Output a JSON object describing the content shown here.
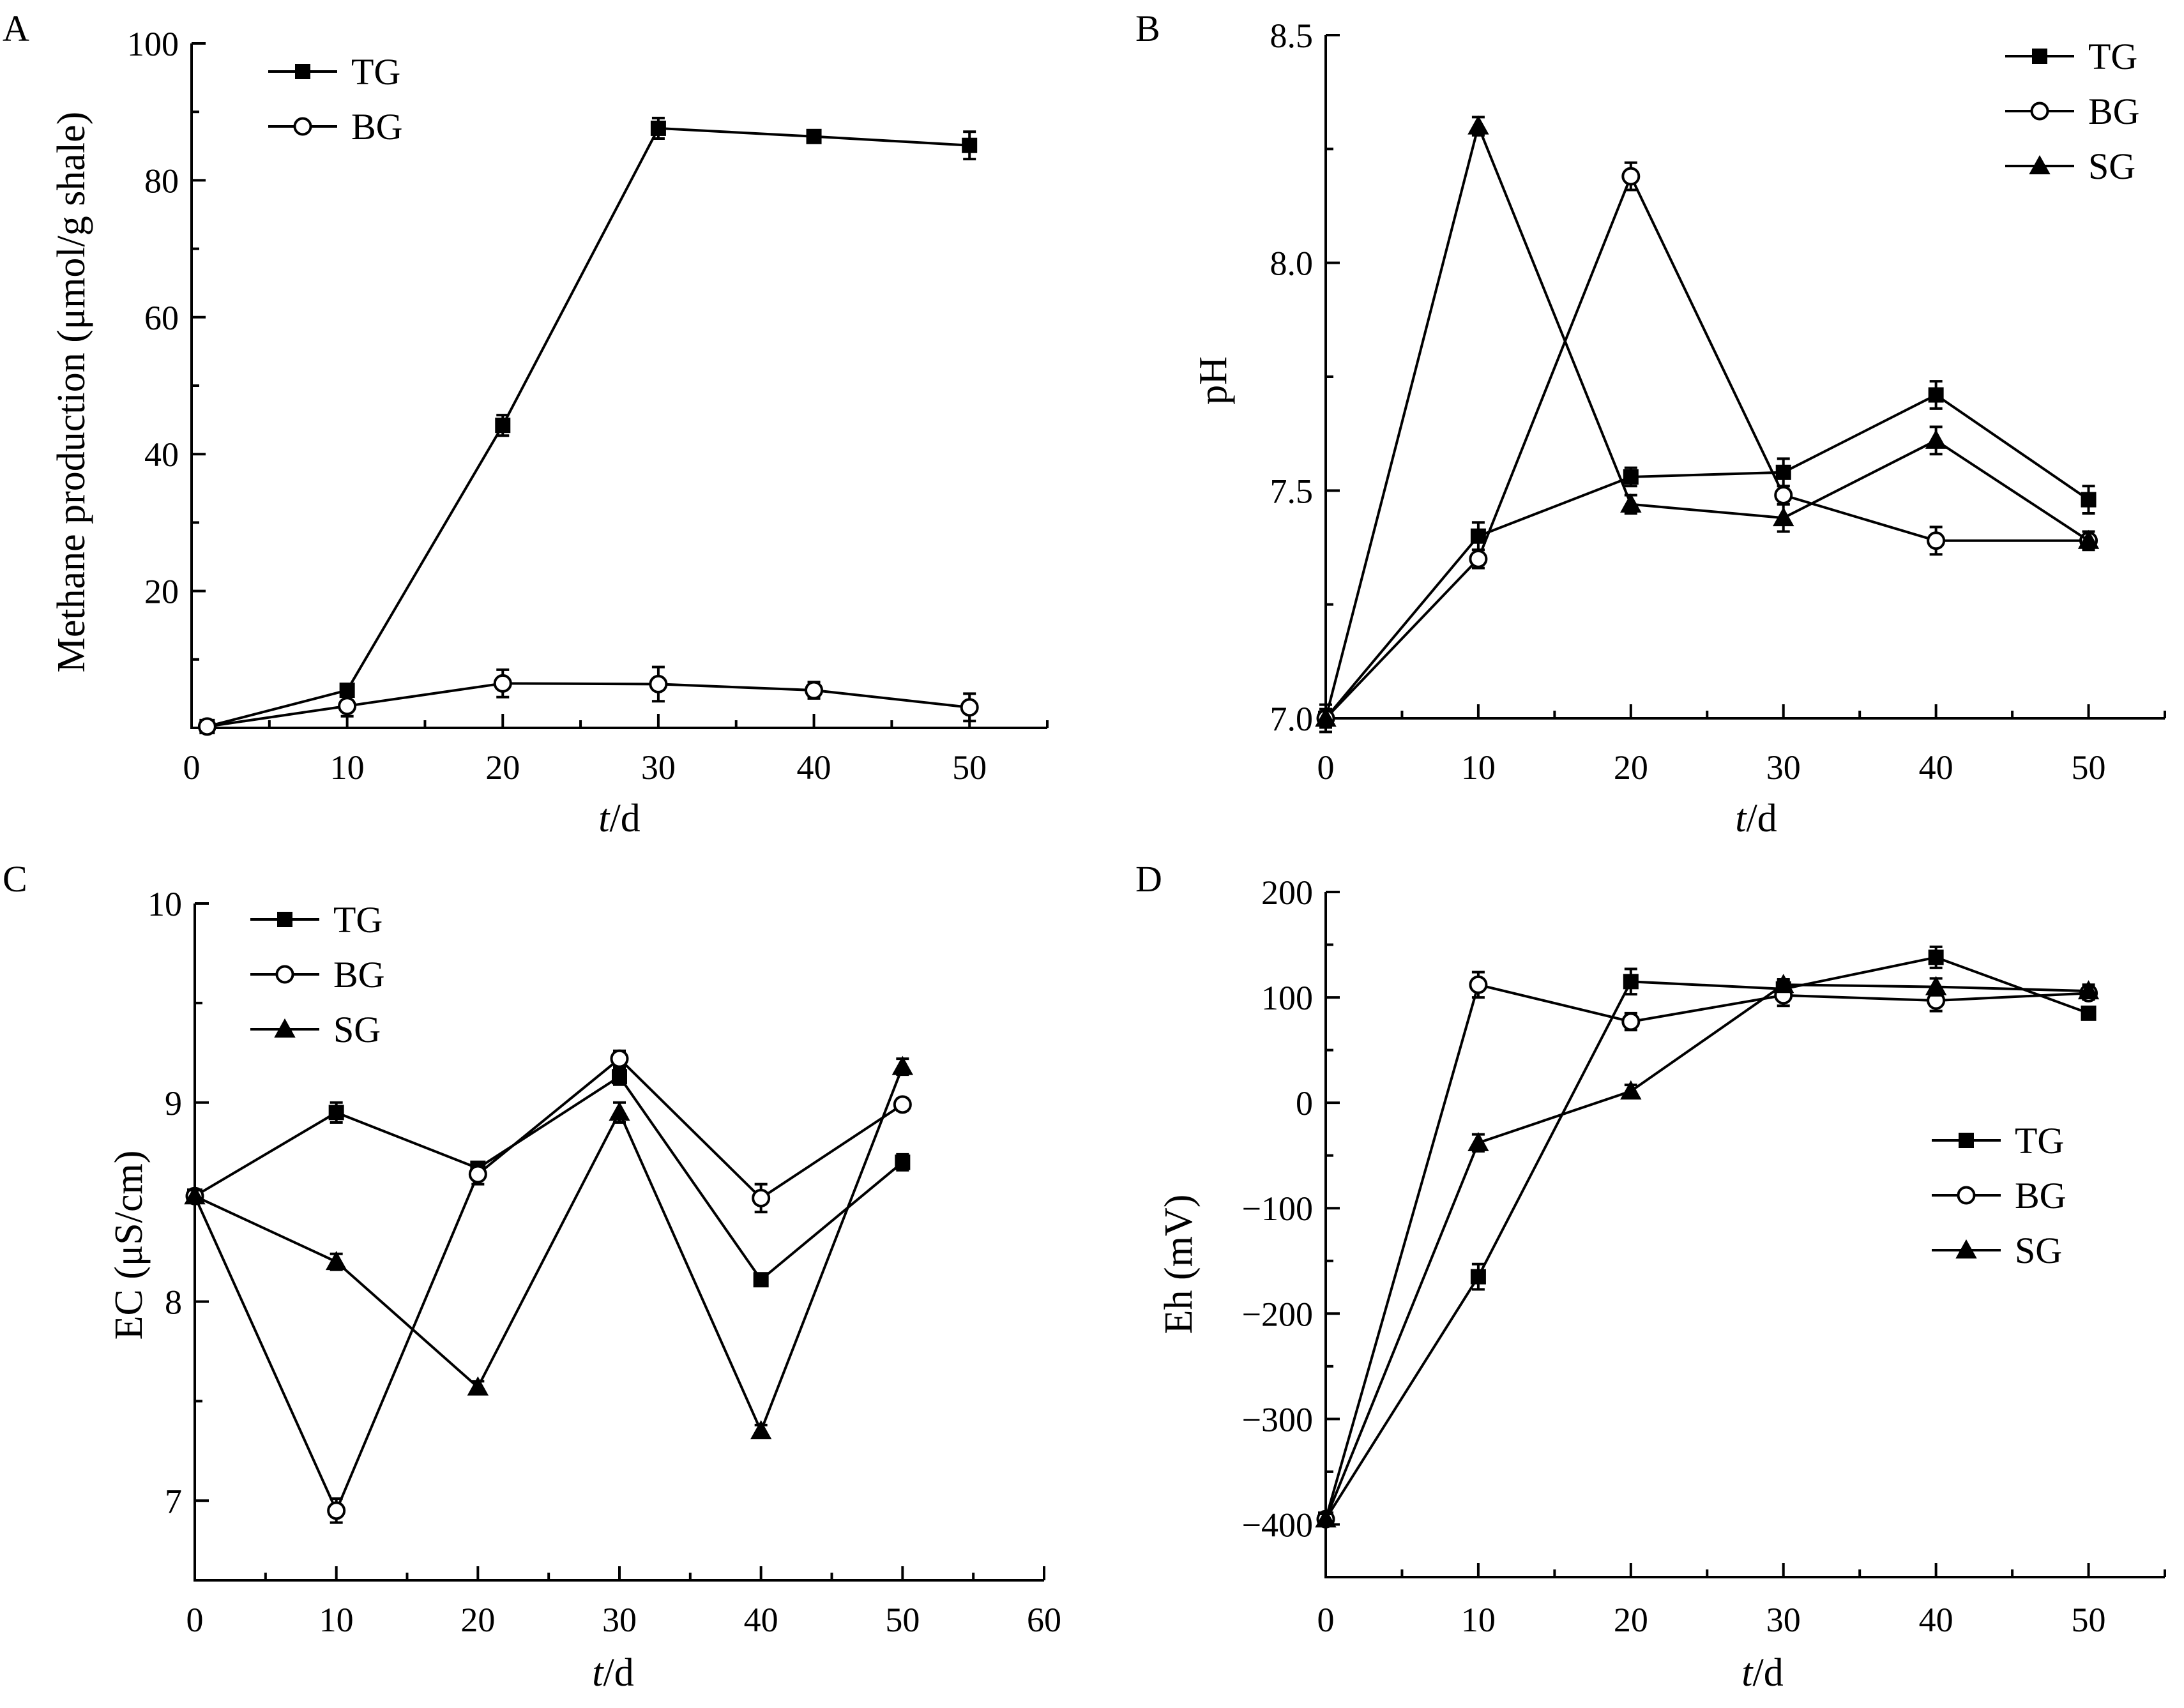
{
  "chart_data": [
    {
      "panel": "A",
      "type": "line",
      "ylabel": "Methane production (μmol/g shale)",
      "xlabel_italic": "t",
      "xlabel_rest": "/d",
      "xlim": [
        0,
        55
      ],
      "ylim": [
        0,
        100
      ],
      "xticks": [
        0,
        10,
        20,
        30,
        40,
        50
      ],
      "xtick_labels": [
        "0",
        "10",
        "20",
        "30",
        "40",
        "50"
      ],
      "yticks": [
        20,
        40,
        60,
        80,
        100
      ],
      "ytick_labels": [
        "20",
        "40",
        "60",
        "80",
        "100"
      ],
      "legend_position": "top-left",
      "series": [
        {
          "name": "TG",
          "marker": "square",
          "x": [
            1,
            10,
            20,
            30,
            40,
            50
          ],
          "y": [
            0.2,
            5.5,
            44.2,
            87.6,
            86.4,
            85.1
          ],
          "err": [
            0.4,
            0.8,
            1.5,
            1.5,
            0.8,
            2.0
          ]
        },
        {
          "name": "BG",
          "marker": "circle",
          "x": [
            1,
            10,
            20,
            30,
            40,
            50
          ],
          "y": [
            0.2,
            3.2,
            6.5,
            6.4,
            5.5,
            3.0
          ],
          "err": [
            0.4,
            1.5,
            2.0,
            2.5,
            1.2,
            2.0
          ]
        }
      ]
    },
    {
      "panel": "B",
      "type": "line",
      "ylabel": "pH",
      "xlabel_italic": "t",
      "xlabel_rest": "/d",
      "xlim": [
        0,
        55
      ],
      "ylim": [
        7.0,
        8.5
      ],
      "xticks": [
        0,
        10,
        20,
        30,
        40,
        50
      ],
      "xtick_labels": [
        "0",
        "10",
        "20",
        "30",
        "40",
        "50"
      ],
      "yticks": [
        7.0,
        7.5,
        8.0,
        8.5
      ],
      "ytick_labels": [
        "7.0",
        "7.5",
        "8.0",
        "8.5"
      ],
      "legend_position": "top-right",
      "series": [
        {
          "name": "TG",
          "marker": "square",
          "x": [
            0,
            10,
            20,
            30,
            40,
            50
          ],
          "y": [
            7.0,
            7.4,
            7.53,
            7.54,
            7.71,
            7.48
          ],
          "err": [
            0.03,
            0.03,
            0.02,
            0.03,
            0.03,
            0.03
          ]
        },
        {
          "name": "BG",
          "marker": "circle",
          "x": [
            0,
            10,
            20,
            30,
            40,
            50
          ],
          "y": [
            7.0,
            7.35,
            8.19,
            7.49,
            7.39,
            7.39
          ],
          "err": [
            0.02,
            0.02,
            0.03,
            0.02,
            0.03,
            0.02
          ]
        },
        {
          "name": "SG",
          "marker": "triangle",
          "x": [
            0,
            10,
            20,
            30,
            40,
            50
          ],
          "y": [
            7.0,
            8.3,
            7.47,
            7.44,
            7.61,
            7.39
          ],
          "err": [
            0.02,
            0.02,
            0.02,
            0.03,
            0.03,
            0.02
          ]
        }
      ]
    },
    {
      "panel": "C",
      "type": "line",
      "ylabel": "EC (μS/cm)",
      "xlabel_italic": "t",
      "xlabel_rest": "/d",
      "xlim": [
        0,
        60
      ],
      "ylim": [
        6.6,
        10
      ],
      "xticks": [
        0,
        10,
        20,
        30,
        40,
        50,
        60
      ],
      "xtick_labels": [
        "0",
        "10",
        "20",
        "30",
        "40",
        "50",
        "60"
      ],
      "yticks": [
        7,
        8,
        9,
        10
      ],
      "ytick_labels": [
        "7",
        "8",
        "9",
        "10"
      ],
      "legend_position": "top-left",
      "series": [
        {
          "name": "TG",
          "marker": "square",
          "x": [
            0,
            10,
            20,
            30,
            40,
            50
          ],
          "y": [
            8.53,
            8.95,
            8.67,
            9.13,
            8.11,
            8.7
          ],
          "err": [
            0.03,
            0.05,
            0.03,
            0.04,
            0.03,
            0.04
          ]
        },
        {
          "name": "BG",
          "marker": "circle",
          "x": [
            0,
            10,
            20,
            30,
            40,
            50
          ],
          "y": [
            8.53,
            6.95,
            8.64,
            9.22,
            8.52,
            8.99
          ],
          "err": [
            0.03,
            0.06,
            0.05,
            0.04,
            0.07,
            0.03
          ]
        },
        {
          "name": "SG",
          "marker": "triangle",
          "x": [
            0,
            10,
            20,
            30,
            40,
            50
          ],
          "y": [
            8.53,
            8.2,
            7.57,
            8.95,
            7.35,
            9.18
          ],
          "err": [
            0.03,
            0.04,
            0.03,
            0.05,
            0.03,
            0.04
          ]
        }
      ]
    },
    {
      "panel": "D",
      "type": "line",
      "ylabel": "Eh (mV)",
      "xlabel_italic": "t",
      "xlabel_rest": "/d",
      "xlim": [
        0,
        55
      ],
      "ylim": [
        -450,
        200
      ],
      "xticks": [
        0,
        10,
        20,
        30,
        40,
        50
      ],
      "xtick_labels": [
        "0",
        "10",
        "20",
        "30",
        "40",
        "50"
      ],
      "yticks": [
        -400,
        -300,
        -200,
        -100,
        0,
        100,
        200
      ],
      "ytick_labels": [
        "−400",
        "−300",
        "−200",
        "−100",
        "0",
        "100",
        "200"
      ],
      "legend_position": "right",
      "series": [
        {
          "name": "TG",
          "marker": "square",
          "x": [
            0,
            10,
            20,
            30,
            40,
            50
          ],
          "y": [
            -395,
            -165,
            115,
            108,
            138,
            85
          ],
          "err": [
            5,
            12,
            12,
            8,
            10,
            5
          ]
        },
        {
          "name": "BG",
          "marker": "circle",
          "x": [
            0,
            10,
            20,
            30,
            40,
            50
          ],
          "y": [
            -395,
            112,
            77,
            102,
            97,
            104
          ],
          "err": [
            5,
            12,
            8,
            10,
            10,
            6
          ]
        },
        {
          "name": "SG",
          "marker": "triangle",
          "x": [
            0,
            10,
            20,
            30,
            40,
            50
          ],
          "y": [
            -395,
            -38,
            11,
            112,
            110,
            106
          ],
          "err": [
            5,
            8,
            6,
            5,
            8,
            6
          ]
        }
      ]
    }
  ]
}
